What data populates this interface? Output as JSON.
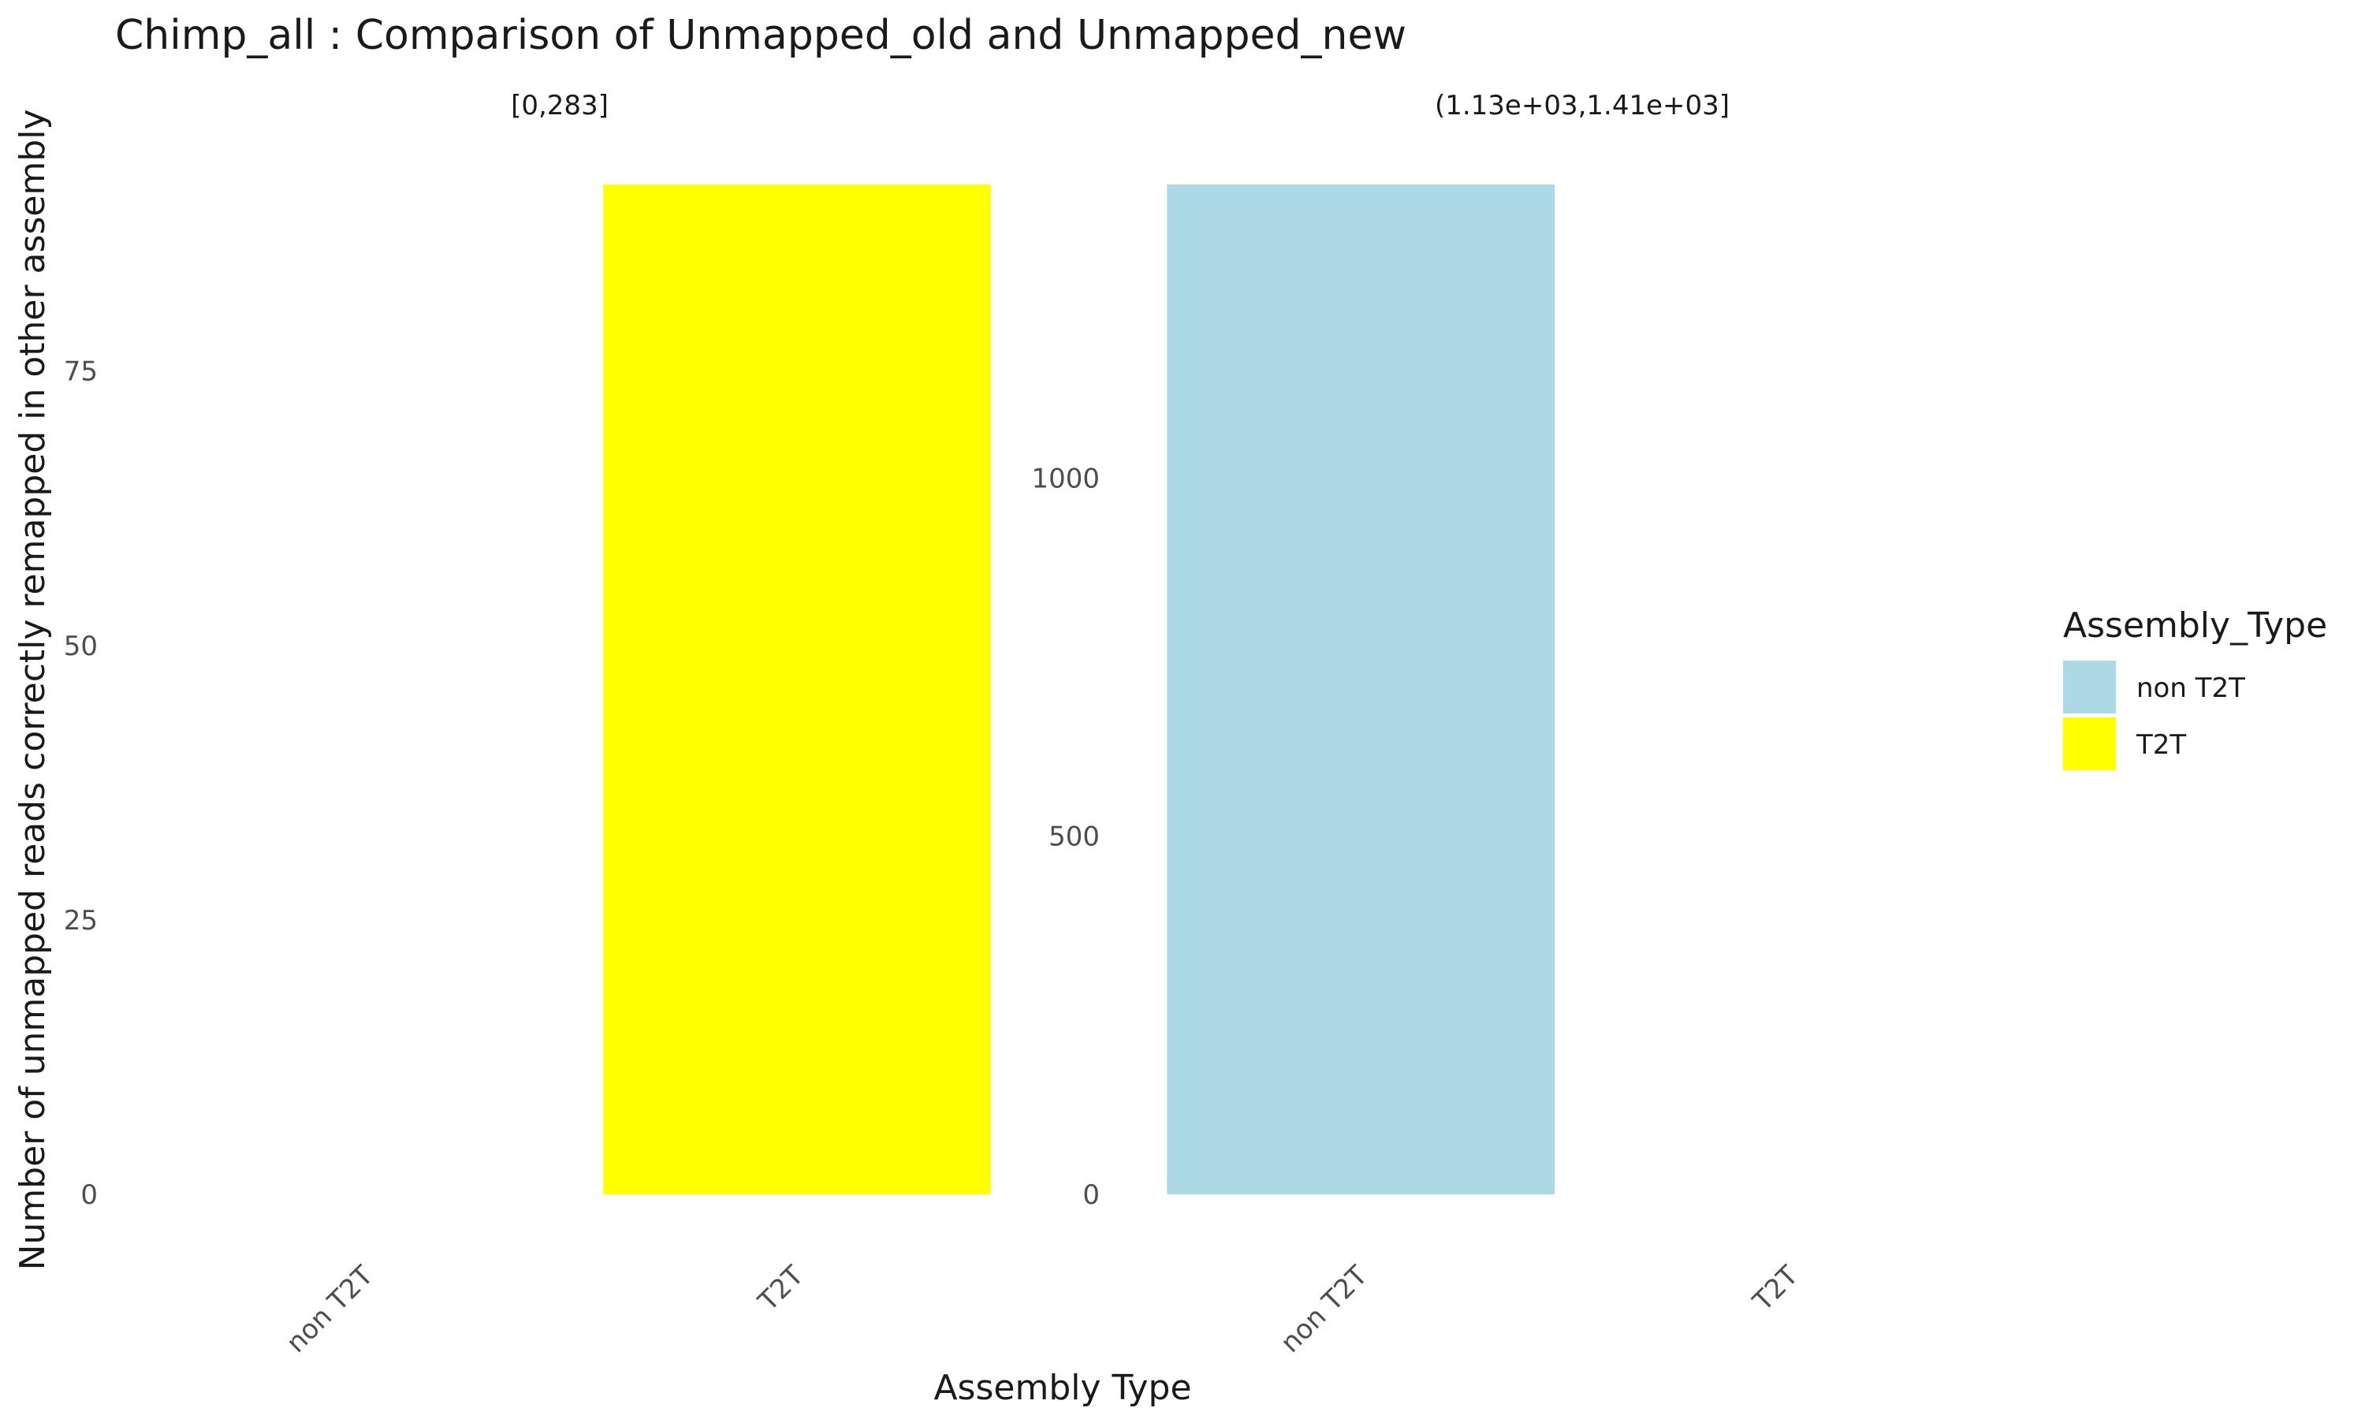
{
  "chart_data": {
    "type": "bar",
    "title": "Chimp_all : Comparison of Unmapped_old and Unmapped_new",
    "xlabel": "Assembly Type",
    "ylabel": "Number of unmapped reads correctly remapped in other assembly",
    "categories": [
      "non T2T",
      "T2T"
    ],
    "grid": false,
    "legend": {
      "title": "Assembly_Type",
      "placement": "right",
      "entries": [
        {
          "label": "non T2T",
          "color": "#ADD8E6"
        },
        {
          "label": "T2T",
          "color": "#FFFF00"
        }
      ]
    },
    "panels": [
      {
        "label": "[0,283]",
        "ylim": [
          0,
          92
        ],
        "yticks": [
          0,
          25,
          50,
          75
        ],
        "bars": [
          {
            "category": "non T2T",
            "value": 0,
            "color": "#ADD8E6"
          },
          {
            "category": "T2T",
            "value": 92,
            "color": "#FFFF00"
          }
        ]
      },
      {
        "label": "(1.13e+03,1.41e+03]",
        "ylim": [
          0,
          1410
        ],
        "yticks": [
          0,
          500,
          1000
        ],
        "bars": [
          {
            "category": "non T2T",
            "value": 1410,
            "color": "#ADD8E6"
          },
          {
            "category": "T2T",
            "value": 0,
            "color": "#FFFF00"
          }
        ]
      }
    ]
  }
}
